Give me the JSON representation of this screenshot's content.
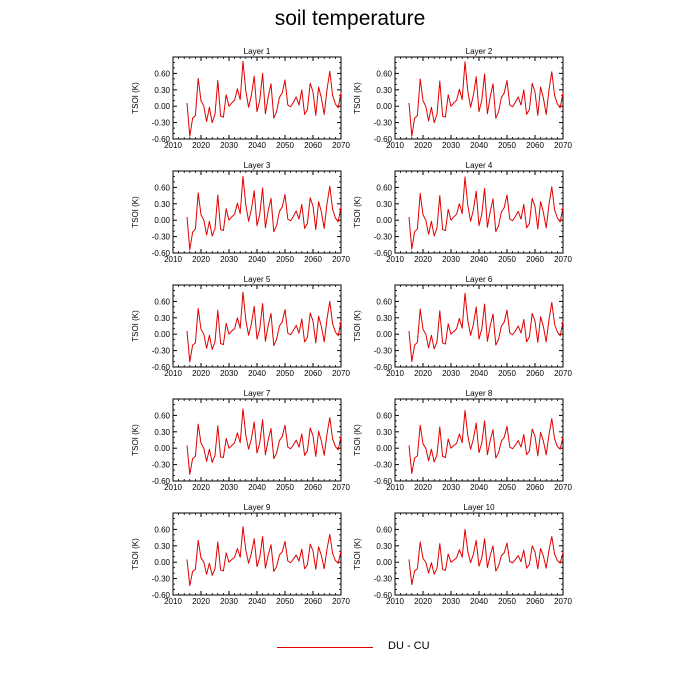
{
  "title": "soil temperature",
  "legend": {
    "label": "DU - CU",
    "color": "#e00000"
  },
  "chart_data": {
    "type": "line",
    "xlim": [
      2010,
      2070
    ],
    "ylim": [
      -0.6,
      0.9
    ],
    "xticks": [
      "2010",
      "2020",
      "2030",
      "2040",
      "2050",
      "2060",
      "2070"
    ],
    "yticks": [
      "-0.60",
      "-0.30",
      "0.00",
      "0.30",
      "0.60"
    ],
    "ylabel": "TSOI  (K)",
    "grid": false,
    "legend_position": "bottom-center",
    "years": [
      2015,
      2016,
      2017,
      2018,
      2019,
      2020,
      2021,
      2022,
      2023,
      2024,
      2025,
      2026,
      2027,
      2028,
      2029,
      2030,
      2031,
      2032,
      2033,
      2034,
      2035,
      2036,
      2037,
      2038,
      2039,
      2040,
      2041,
      2042,
      2043,
      2044,
      2045,
      2046,
      2047,
      2048,
      2049,
      2050,
      2051,
      2052,
      2053,
      2054,
      2055,
      2056,
      2057,
      2058,
      2059,
      2060,
      2061,
      2062,
      2063,
      2064,
      2065,
      2066,
      2067,
      2068,
      2069,
      2070
    ],
    "panels": [
      {
        "title": "Layer 1",
        "series": [
          {
            "name": "DU - CU",
            "values": [
              0.06,
              -0.55,
              -0.22,
              -0.17,
              0.51,
              0.1,
              0.0,
              -0.28,
              -0.02,
              -0.3,
              -0.15,
              0.47,
              -0.18,
              -0.2,
              0.21,
              0.0,
              0.06,
              0.11,
              0.32,
              0.12,
              0.82,
              0.28,
              -0.02,
              0.2,
              0.55,
              -0.1,
              0.11,
              0.6,
              -0.14,
              0.17,
              0.41,
              -0.22,
              -0.1,
              0.16,
              0.24,
              0.48,
              0.02,
              -0.01,
              0.07,
              0.17,
              0.02,
              0.3,
              -0.15,
              -0.06,
              0.42,
              0.26,
              -0.17,
              0.35,
              0.15,
              -0.15,
              0.3,
              0.64,
              0.2,
              0.04,
              -0.03,
              0.25
            ]
          }
        ]
      },
      {
        "title": "Layer 2",
        "series": [
          {
            "name": "DU - CU",
            "values": [
              0.06,
              -0.55,
              -0.22,
              -0.17,
              0.5,
              0.1,
              0.0,
              -0.27,
              -0.02,
              -0.3,
              -0.15,
              0.46,
              -0.18,
              -0.2,
              0.21,
              0.0,
              0.06,
              0.11,
              0.31,
              0.12,
              0.81,
              0.28,
              -0.02,
              0.2,
              0.54,
              -0.1,
              0.11,
              0.59,
              -0.14,
              0.17,
              0.41,
              -0.22,
              -0.1,
              0.16,
              0.24,
              0.47,
              0.02,
              -0.01,
              0.07,
              0.17,
              0.02,
              0.3,
              -0.15,
              -0.06,
              0.42,
              0.26,
              -0.17,
              0.35,
              0.15,
              -0.15,
              0.3,
              0.63,
              0.2,
              0.04,
              -0.03,
              0.25
            ]
          }
        ]
      },
      {
        "title": "Layer 3",
        "series": [
          {
            "name": "DU - CU",
            "values": [
              0.06,
              -0.54,
              -0.22,
              -0.16,
              0.5,
              0.1,
              0.0,
              -0.27,
              -0.02,
              -0.29,
              -0.15,
              0.46,
              -0.17,
              -0.19,
              0.21,
              0.0,
              0.06,
              0.11,
              0.31,
              0.12,
              0.8,
              0.28,
              -0.02,
              0.2,
              0.54,
              -0.1,
              0.11,
              0.59,
              -0.14,
              0.17,
              0.4,
              -0.21,
              -0.1,
              0.16,
              0.24,
              0.47,
              0.02,
              -0.01,
              0.07,
              0.17,
              0.02,
              0.29,
              -0.15,
              -0.06,
              0.41,
              0.26,
              -0.17,
              0.34,
              0.15,
              -0.15,
              0.3,
              0.62,
              0.2,
              0.04,
              -0.03,
              0.25
            ]
          }
        ]
      },
      {
        "title": "Layer 4",
        "series": [
          {
            "name": "DU - CU",
            "values": [
              0.06,
              -0.53,
              -0.21,
              -0.16,
              0.49,
              0.1,
              0.0,
              -0.26,
              -0.02,
              -0.29,
              -0.14,
              0.45,
              -0.17,
              -0.19,
              0.2,
              0.0,
              0.06,
              0.11,
              0.3,
              0.12,
              0.79,
              0.27,
              -0.02,
              0.19,
              0.53,
              -0.1,
              0.11,
              0.58,
              -0.13,
              0.16,
              0.39,
              -0.21,
              -0.1,
              0.15,
              0.23,
              0.46,
              0.02,
              -0.01,
              0.07,
              0.16,
              0.02,
              0.29,
              -0.14,
              -0.06,
              0.4,
              0.25,
              -0.16,
              0.34,
              0.14,
              -0.14,
              0.29,
              0.61,
              0.19,
              0.04,
              -0.03,
              0.24
            ]
          }
        ]
      },
      {
        "title": "Layer 5",
        "series": [
          {
            "name": "DU - CU",
            "values": [
              0.06,
              -0.51,
              -0.2,
              -0.16,
              0.47,
              0.09,
              0.0,
              -0.26,
              -0.02,
              -0.28,
              -0.14,
              0.44,
              -0.17,
              -0.19,
              0.2,
              0.0,
              0.06,
              0.1,
              0.3,
              0.11,
              0.77,
              0.26,
              -0.02,
              0.19,
              0.51,
              -0.09,
              0.1,
              0.56,
              -0.13,
              0.16,
              0.38,
              -0.21,
              -0.09,
              0.15,
              0.22,
              0.45,
              0.02,
              -0.01,
              0.07,
              0.16,
              0.02,
              0.28,
              -0.14,
              -0.06,
              0.39,
              0.24,
              -0.16,
              0.33,
              0.14,
              -0.14,
              0.28,
              0.6,
              0.19,
              0.04,
              -0.03,
              0.23
            ]
          }
        ]
      },
      {
        "title": "Layer 6",
        "series": [
          {
            "name": "DU - CU",
            "values": [
              0.06,
              -0.5,
              -0.2,
              -0.15,
              0.46,
              0.09,
              0.0,
              -0.25,
              -0.02,
              -0.27,
              -0.14,
              0.43,
              -0.16,
              -0.18,
              0.19,
              0.0,
              0.05,
              0.1,
              0.29,
              0.11,
              0.75,
              0.25,
              -0.02,
              0.18,
              0.5,
              -0.09,
              0.1,
              0.55,
              -0.13,
              0.15,
              0.37,
              -0.2,
              -0.09,
              0.15,
              0.22,
              0.44,
              0.02,
              -0.01,
              0.06,
              0.15,
              0.02,
              0.27,
              -0.14,
              -0.05,
              0.38,
              0.24,
              -0.15,
              0.32,
              0.14,
              -0.14,
              0.27,
              0.58,
              0.18,
              0.04,
              -0.03,
              0.23
            ]
          }
        ]
      },
      {
        "title": "Layer 7",
        "series": [
          {
            "name": "DU - CU",
            "values": [
              0.05,
              -0.48,
              -0.19,
              -0.15,
              0.44,
              0.09,
              0.0,
              -0.24,
              -0.02,
              -0.26,
              -0.13,
              0.41,
              -0.16,
              -0.17,
              0.18,
              0.0,
              0.05,
              0.1,
              0.28,
              0.1,
              0.72,
              0.24,
              -0.02,
              0.17,
              0.48,
              -0.09,
              0.1,
              0.52,
              -0.12,
              0.15,
              0.36,
              -0.19,
              -0.09,
              0.14,
              0.21,
              0.42,
              0.02,
              -0.01,
              0.06,
              0.15,
              0.02,
              0.26,
              -0.13,
              -0.05,
              0.37,
              0.23,
              -0.15,
              0.31,
              0.13,
              -0.13,
              0.26,
              0.56,
              0.17,
              0.03,
              -0.03,
              0.22
            ]
          }
        ]
      },
      {
        "title": "Layer 8",
        "series": [
          {
            "name": "DU - CU",
            "values": [
              0.05,
              -0.46,
              -0.18,
              -0.14,
              0.42,
              0.08,
              0.0,
              -0.23,
              -0.02,
              -0.25,
              -0.12,
              0.39,
              -0.15,
              -0.17,
              0.17,
              0.0,
              0.05,
              0.09,
              0.26,
              0.1,
              0.69,
              0.23,
              -0.02,
              0.17,
              0.46,
              -0.08,
              0.09,
              0.5,
              -0.12,
              0.14,
              0.34,
              -0.18,
              -0.08,
              0.13,
              0.2,
              0.4,
              0.02,
              -0.01,
              0.06,
              0.14,
              0.02,
              0.25,
              -0.12,
              -0.05,
              0.35,
              0.22,
              -0.14,
              0.29,
              0.13,
              -0.12,
              0.25,
              0.54,
              0.17,
              0.03,
              -0.02,
              0.21
            ]
          }
        ]
      },
      {
        "title": "Layer 9",
        "series": [
          {
            "name": "DU - CU",
            "values": [
              0.05,
              -0.43,
              -0.17,
              -0.13,
              0.4,
              0.08,
              0.0,
              -0.22,
              -0.02,
              -0.24,
              -0.12,
              0.37,
              -0.14,
              -0.16,
              0.17,
              0.0,
              0.05,
              0.09,
              0.25,
              0.09,
              0.65,
              0.22,
              -0.02,
              0.16,
              0.43,
              -0.08,
              0.09,
              0.47,
              -0.11,
              0.13,
              0.32,
              -0.17,
              -0.08,
              0.13,
              0.19,
              0.38,
              0.02,
              -0.01,
              0.06,
              0.13,
              0.02,
              0.24,
              -0.12,
              -0.05,
              0.33,
              0.21,
              -0.13,
              0.28,
              0.12,
              -0.12,
              0.24,
              0.51,
              0.16,
              0.03,
              -0.02,
              0.2
            ]
          }
        ]
      },
      {
        "title": "Layer 10",
        "series": [
          {
            "name": "DU - CU",
            "values": [
              0.05,
              -0.41,
              -0.16,
              -0.12,
              0.37,
              0.07,
              0.0,
              -0.2,
              -0.01,
              -0.22,
              -0.11,
              0.34,
              -0.13,
              -0.15,
              0.15,
              0.0,
              0.04,
              0.08,
              0.23,
              0.09,
              0.6,
              0.2,
              -0.01,
              0.15,
              0.4,
              -0.07,
              0.08,
              0.43,
              -0.1,
              0.12,
              0.3,
              -0.16,
              -0.07,
              0.12,
              0.17,
              0.35,
              0.01,
              -0.01,
              0.05,
              0.12,
              0.01,
              0.22,
              -0.11,
              -0.04,
              0.3,
              0.19,
              -0.12,
              0.25,
              0.11,
              -0.11,
              0.22,
              0.47,
              0.15,
              0.03,
              -0.02,
              0.18
            ]
          }
        ]
      }
    ]
  }
}
